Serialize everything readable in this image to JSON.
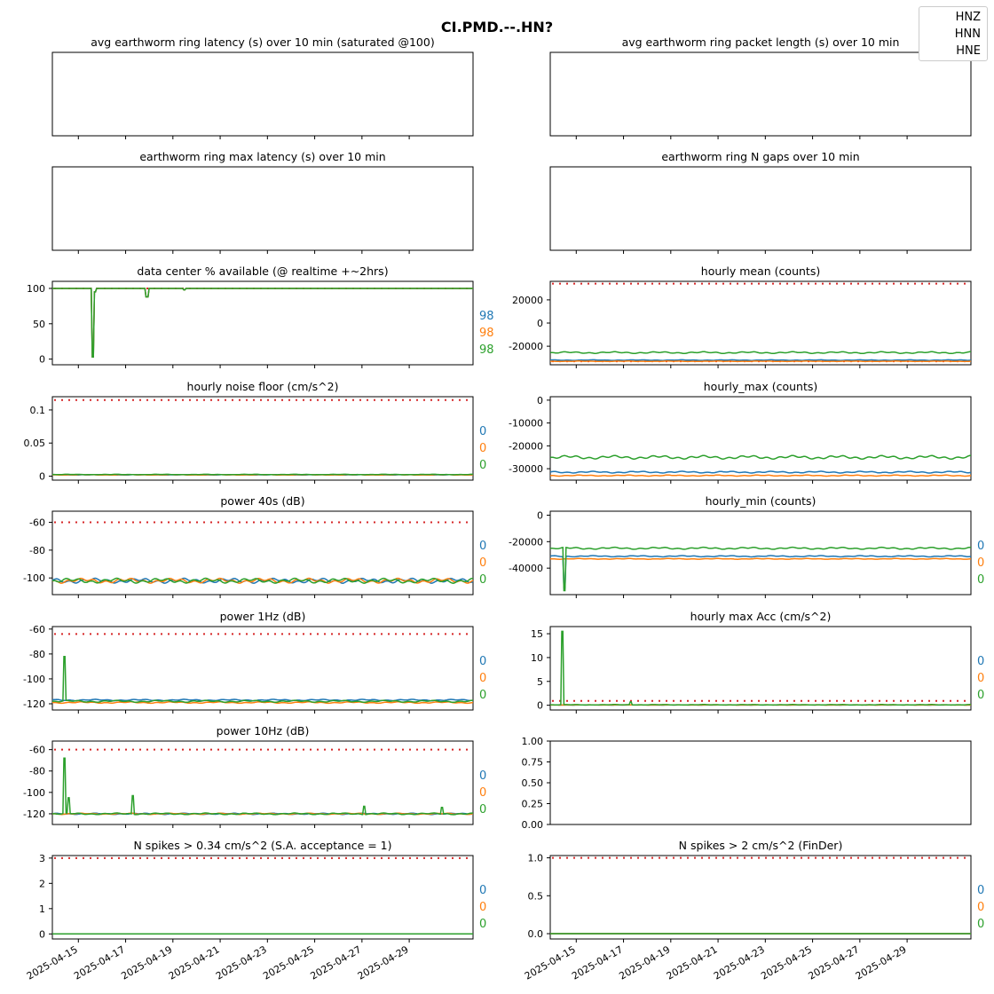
{
  "title": "CI.PMD.--.HN?",
  "legend": {
    "placement": "top-right",
    "items": [
      "HNZ",
      "HNN",
      "HNE"
    ]
  },
  "colors": {
    "HNZ": "#1f77b4",
    "HNN": "#ff7f0e",
    "HNE": "#2ca02c",
    "threshold": "#d62728"
  },
  "x_dates": [
    "2025-04-15",
    "2025-04-17",
    "2025-04-19",
    "2025-04-21",
    "2025-04-23",
    "2025-04-25",
    "2025-04-27",
    "2025-04-29"
  ],
  "chart_data": [
    {
      "type": "line",
      "title": "avg earthworm ring latency (s)   over 10 min (saturated @100)",
      "empty": true
    },
    {
      "type": "line",
      "title": "avg earthworm ring packet length (s)   over 10 min",
      "empty": true
    },
    {
      "type": "line",
      "title": "earthworm ring max latency (s)   over 10 min",
      "empty": true
    },
    {
      "type": "line",
      "title": "earthworm ring N gaps   over 10 min",
      "empty": true
    },
    {
      "type": "line",
      "title": "data center % available (@ realtime +~2hrs)",
      "ylim": [
        -8,
        110
      ],
      "yticks": [
        0,
        50,
        100
      ],
      "threshold": 100,
      "annotations": [
        "98",
        "98",
        "98"
      ],
      "series": [
        {
          "name": "HNZ",
          "base": 100,
          "spikes": [
            [
              15.6,
              3
            ],
            [
              15.7,
              95
            ],
            [
              17.9,
              88
            ],
            [
              19.5,
              98
            ]
          ]
        },
        {
          "name": "HNN",
          "base": 100,
          "spikes": [
            [
              15.6,
              3
            ],
            [
              15.7,
              95
            ],
            [
              17.9,
              88
            ],
            [
              19.5,
              98
            ]
          ]
        },
        {
          "name": "HNE",
          "base": 100,
          "spikes": [
            [
              15.6,
              3
            ],
            [
              15.7,
              95
            ],
            [
              17.9,
              88
            ],
            [
              19.5,
              98
            ]
          ]
        }
      ]
    },
    {
      "type": "line",
      "title": "hourly mean (counts)",
      "ylim": [
        -36000,
        36000
      ],
      "yticks": [
        -20000,
        0,
        20000
      ],
      "thresholds": [
        34000,
        -33000
      ],
      "series": [
        {
          "name": "HNZ",
          "base": -32000,
          "amp": 300
        },
        {
          "name": "HNN",
          "base": -33000,
          "amp": 200
        },
        {
          "name": "HNE",
          "base": -25500,
          "amp": 800
        }
      ]
    },
    {
      "type": "line",
      "title": "hourly noise floor (cm/s^2)",
      "ylim": [
        -0.006,
        0.12
      ],
      "yticks": [
        0,
        0.05,
        0.1
      ],
      "threshold": 0.115,
      "annotations": [
        "0",
        "0",
        "0"
      ],
      "series": [
        {
          "name": "HNZ",
          "base": 0.002,
          "amp": 0.0004
        },
        {
          "name": "HNN",
          "base": 0.002,
          "amp": 0.0004
        },
        {
          "name": "HNE",
          "base": 0.0025,
          "amp": 0.0004
        }
      ]
    },
    {
      "type": "line",
      "title": "hourly_max (counts)",
      "ylim": [
        -35000,
        1500
      ],
      "yticks": [
        -30000,
        -20000,
        -10000,
        0
      ],
      "series": [
        {
          "name": "HNZ",
          "base": -31500,
          "amp": 400
        },
        {
          "name": "HNN",
          "base": -33000,
          "amp": 250
        },
        {
          "name": "HNE",
          "base": -25000,
          "amp": 800
        }
      ]
    },
    {
      "type": "line",
      "title": "power 40s (dB)",
      "ylim": [
        -112,
        -52
      ],
      "yticks": [
        -100,
        -80,
        -60
      ],
      "threshold": -60,
      "annotations": [
        "0",
        "0",
        "0"
      ],
      "series": [
        {
          "name": "HNZ",
          "base": -102,
          "amp": 1.8
        },
        {
          "name": "HNN",
          "base": -102,
          "amp": 1.8
        },
        {
          "name": "HNE",
          "base": -102,
          "amp": 1.8
        }
      ]
    },
    {
      "type": "line",
      "title": "hourly_min (counts)",
      "ylim": [
        -60000,
        3000
      ],
      "yticks": [
        -40000,
        -20000,
        0
      ],
      "annotations": [
        "0",
        "0",
        "0"
      ],
      "series": [
        {
          "name": "HNZ",
          "base": -31000,
          "amp": 500,
          "spikes": [
            [
              14.5,
              -55000
            ]
          ]
        },
        {
          "name": "HNN",
          "base": -33000,
          "amp": 300
        },
        {
          "name": "HNE",
          "base": -25000,
          "amp": 800,
          "spikes": [
            [
              14.5,
              -57000
            ]
          ]
        }
      ]
    },
    {
      "type": "line",
      "title": "power 1Hz (dB)",
      "ylim": [
        -125,
        -58
      ],
      "yticks": [
        -120,
        -100,
        -80,
        -60
      ],
      "threshold": -64,
      "annotations": [
        "0",
        "0",
        "0"
      ],
      "series": [
        {
          "name": "HNZ",
          "base": -117,
          "amp": 0.6
        },
        {
          "name": "HNN",
          "base": -119,
          "amp": 0.6
        },
        {
          "name": "HNE",
          "base": -118,
          "amp": 0.8,
          "spikes": [
            [
              14.4,
              -82
            ]
          ]
        }
      ]
    },
    {
      "type": "line",
      "title": "hourly max Acc (cm/s^2)",
      "ylim": [
        -1,
        16.5
      ],
      "yticks": [
        0,
        5,
        10,
        15
      ],
      "threshold": 0.9,
      "annotations": [
        "0",
        "0",
        "0"
      ],
      "series": [
        {
          "name": "HNZ",
          "base": 0.05,
          "amp": 0.02
        },
        {
          "name": "HNN",
          "base": 0.05,
          "amp": 0.02
        },
        {
          "name": "HNE",
          "base": 0.1,
          "amp": 0.05,
          "spikes": [
            [
              14.4,
              15.5
            ],
            [
              17.3,
              0.7
            ]
          ]
        }
      ]
    },
    {
      "type": "line",
      "title": "power 10Hz (dB)",
      "ylim": [
        -130,
        -52
      ],
      "yticks": [
        -120,
        -100,
        -80,
        -60
      ],
      "threshold": -60,
      "annotations": [
        "0",
        "0",
        "0"
      ],
      "series": [
        {
          "name": "HNZ",
          "base": -120,
          "amp": 0.6
        },
        {
          "name": "HNN",
          "base": -120,
          "amp": 0.6
        },
        {
          "name": "HNE",
          "base": -120,
          "amp": 0.8,
          "spikes": [
            [
              14.4,
              -68
            ],
            [
              14.6,
              -105
            ],
            [
              17.3,
              -103
            ],
            [
              27.1,
              -113
            ],
            [
              30.4,
              -114
            ]
          ]
        }
      ]
    },
    {
      "type": "empty",
      "title": "",
      "ylim": [
        0,
        1
      ],
      "yticks": [
        "0.00",
        "0.25",
        "0.50",
        "0.75",
        "1.00"
      ]
    },
    {
      "type": "line",
      "title": "N spikes > 0.34 cm/s^2 (S.A. acceptance = 1)",
      "ylim": [
        -0.2,
        3.1
      ],
      "yticks": [
        0,
        1,
        2,
        3
      ],
      "threshold": 3,
      "annotations": [
        "0",
        "0",
        "0"
      ],
      "series": [
        {
          "name": "HNZ",
          "base": 0,
          "amp": 0
        },
        {
          "name": "HNN",
          "base": 0,
          "amp": 0
        },
        {
          "name": "HNE",
          "base": 0,
          "amp": 0
        }
      ]
    },
    {
      "type": "line",
      "title": "N spikes > 2 cm/s^2 (FinDer)",
      "ylim": [
        -0.07,
        1.03
      ],
      "yticks": [
        "0.0",
        "0.5",
        "1.0"
      ],
      "threshold": 1,
      "annotations": [
        "0",
        "0",
        "0"
      ],
      "series": [
        {
          "name": "HNZ",
          "base": 0,
          "amp": 0
        },
        {
          "name": "HNN",
          "base": 0,
          "amp": 0
        },
        {
          "name": "HNE",
          "base": 0,
          "amp": 0
        }
      ]
    }
  ]
}
